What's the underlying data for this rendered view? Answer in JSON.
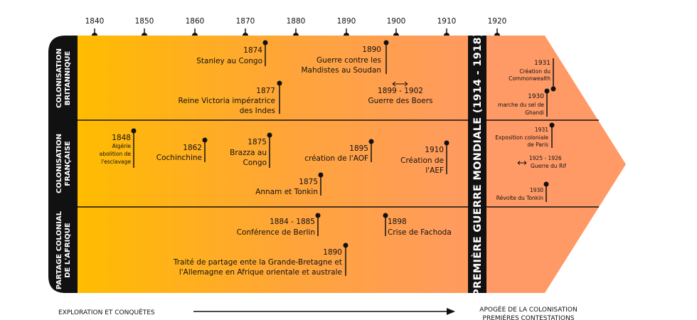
{
  "years": [
    "1840",
    "1850",
    "1860",
    "1870",
    "1880",
    "1890",
    "1900",
    "1910",
    "1920"
  ],
  "rows": {
    "britain": "COLONISATION BRITANNIQUE",
    "france": "COLONISATION FRANÇAISE",
    "africa": "PARTAGE COLONIAL DE L'AFRIQUE"
  },
  "war_label": "PREMIÈRE GUERRE MONDIALE (1914 - 1918)",
  "events": {
    "stanley": {
      "year": "1874",
      "text": "Stanley au Congo"
    },
    "mahdistes": {
      "year": "1890",
      "text1": "Guerre contre les",
      "text2": "Mahdistes au Soudan"
    },
    "victoria": {
      "year": "1877",
      "text1": "Reine Victoria impératrice",
      "text2": "des Indes"
    },
    "boers": {
      "year": "1899 - 1902",
      "text": "Guerre des Boers"
    },
    "algerie": {
      "year": "1848",
      "text1": "Algérie",
      "text2": "abolition de",
      "text3": "l'esclavage"
    },
    "cochinchine": {
      "year": "1862",
      "text": "Cochinchine"
    },
    "brazza": {
      "year": "1875",
      "text1": "Brazza au",
      "text2": "Congo"
    },
    "aof": {
      "year": "1895",
      "text": "création de l'AOF"
    },
    "aef": {
      "year": "1910",
      "text1": "Création de",
      "text2": "l'AEF"
    },
    "annam": {
      "year": "1875",
      "text": "Annam et Tonkin"
    },
    "berlin": {
      "year": "1884 - 1885",
      "text": "Conférence de Berlin"
    },
    "fachoda": {
      "year": "1898",
      "text": "Crise de Fachoda"
    },
    "traite": {
      "year": "1890",
      "text1": "Traité de partage ente la Grande-Bretagne et",
      "text2": "l'Allemagne en Afrique orientale et australe"
    },
    "commonwealth": {
      "year": "1931",
      "text1": "Création du",
      "text2": "Commonwealth"
    },
    "ghandi": {
      "year": "1930",
      "text1": "marche du sel de",
      "text2": "Ghandi"
    },
    "expo": {
      "year": "1931",
      "text1": "Exposition coloniale",
      "text2": "de Paris"
    },
    "rif": {
      "year": "1925 - 1926",
      "text": "Guerre du Rif"
    },
    "tonkin": {
      "year": "1930",
      "text": "Révolte du Tonkin"
    }
  },
  "bottom": {
    "left": "EXPLORATION ET CONQUÊTES",
    "right1": "APOGÉE DE LA COLONISATION",
    "right2": "PREMIÈRES CONTESTATIONS"
  },
  "colors": {
    "gradient_start": "#FFB800",
    "gradient_end": "#FF9A66",
    "arrow_fill": "#FF9966",
    "band": "#111111"
  }
}
